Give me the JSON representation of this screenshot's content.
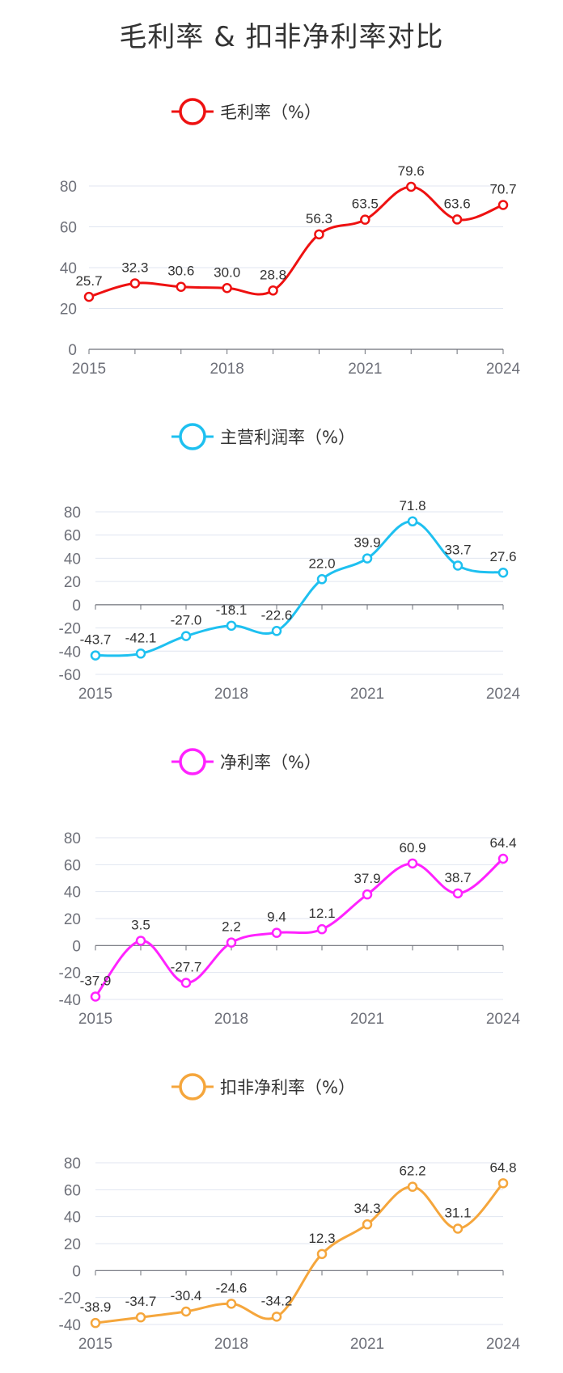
{
  "title": "毛利率 & 扣非净利率对比",
  "chart_data": [
    {
      "type": "line",
      "title": "毛利率（%）",
      "legend": "毛利率（%）",
      "color": "#ee1111",
      "x": [
        "2015",
        "2016",
        "2017",
        "2018",
        "2019",
        "2020",
        "2021",
        "2022",
        "2023",
        "2024"
      ],
      "x_tick_labels": [
        "2015",
        "2018",
        "2021",
        "2024"
      ],
      "values": [
        25.7,
        32.3,
        30.6,
        30.0,
        28.8,
        56.3,
        63.5,
        79.6,
        63.6,
        70.7
      ],
      "labels": [
        "25.7",
        "32.3",
        "30.6",
        "30.0",
        "28.8",
        "56.3",
        "63.5",
        "79.6",
        "63.6",
        "70.7"
      ],
      "ylim": [
        0,
        80
      ],
      "yticks": [
        0,
        20,
        40,
        60,
        80
      ]
    },
    {
      "type": "line",
      "title": "主营利润率（%）",
      "legend": "主营利润率（%）",
      "color": "#1ec0f0",
      "x": [
        "2015",
        "2016",
        "2017",
        "2018",
        "2019",
        "2020",
        "2021",
        "2022",
        "2023",
        "2024"
      ],
      "x_tick_labels": [
        "2015",
        "2018",
        "2021",
        "2024"
      ],
      "values": [
        -43.7,
        -42.1,
        -27.0,
        -18.1,
        -22.6,
        22.0,
        39.9,
        71.8,
        33.7,
        27.6
      ],
      "labels": [
        "-43.7",
        "-42.1",
        "-27.0",
        "-18.1",
        "-22.6",
        "22.0",
        "39.9",
        "71.8",
        "33.7",
        "27.6"
      ],
      "ylim": [
        -60,
        80
      ],
      "yticks": [
        -60,
        -40,
        -20,
        0,
        20,
        40,
        60,
        80
      ]
    },
    {
      "type": "line",
      "title": "净利率（%）",
      "legend": "净利率（%）",
      "color": "#ff22ff",
      "x": [
        "2015",
        "2016",
        "2017",
        "2018",
        "2019",
        "2020",
        "2021",
        "2022",
        "2023",
        "2024"
      ],
      "x_tick_labels": [
        "2015",
        "2018",
        "2021",
        "2024"
      ],
      "values": [
        -37.9,
        3.5,
        -27.7,
        2.2,
        9.4,
        12.1,
        37.9,
        60.9,
        38.7,
        64.4
      ],
      "labels": [
        "-37.9",
        "3.5",
        "-27.7",
        "2.2",
        "9.4",
        "12.1",
        "37.9",
        "60.9",
        "38.7",
        "64.4"
      ],
      "ylim": [
        -40,
        80
      ],
      "yticks": [
        -40,
        -20,
        0,
        20,
        40,
        60,
        80
      ]
    },
    {
      "type": "line",
      "title": "扣非净利率（%）",
      "legend": "扣非净利率（%）",
      "color": "#f5a63c",
      "x": [
        "2015",
        "2016",
        "2017",
        "2018",
        "2019",
        "2020",
        "2021",
        "2022",
        "2023",
        "2024"
      ],
      "x_tick_labels": [
        "2015",
        "2018",
        "2021",
        "2024"
      ],
      "values": [
        -38.9,
        -34.7,
        -30.4,
        -24.6,
        -34.2,
        12.3,
        34.3,
        62.2,
        31.1,
        64.8
      ],
      "labels": [
        "-38.9",
        "-34.7",
        "-30.4",
        "-24.6",
        "-34.2",
        "12.3",
        "34.3",
        "62.2",
        "31.1",
        "64.8"
      ],
      "ylim": [
        -40,
        80
      ],
      "yticks": [
        -40,
        -20,
        0,
        20,
        40,
        60,
        80
      ]
    }
  ]
}
